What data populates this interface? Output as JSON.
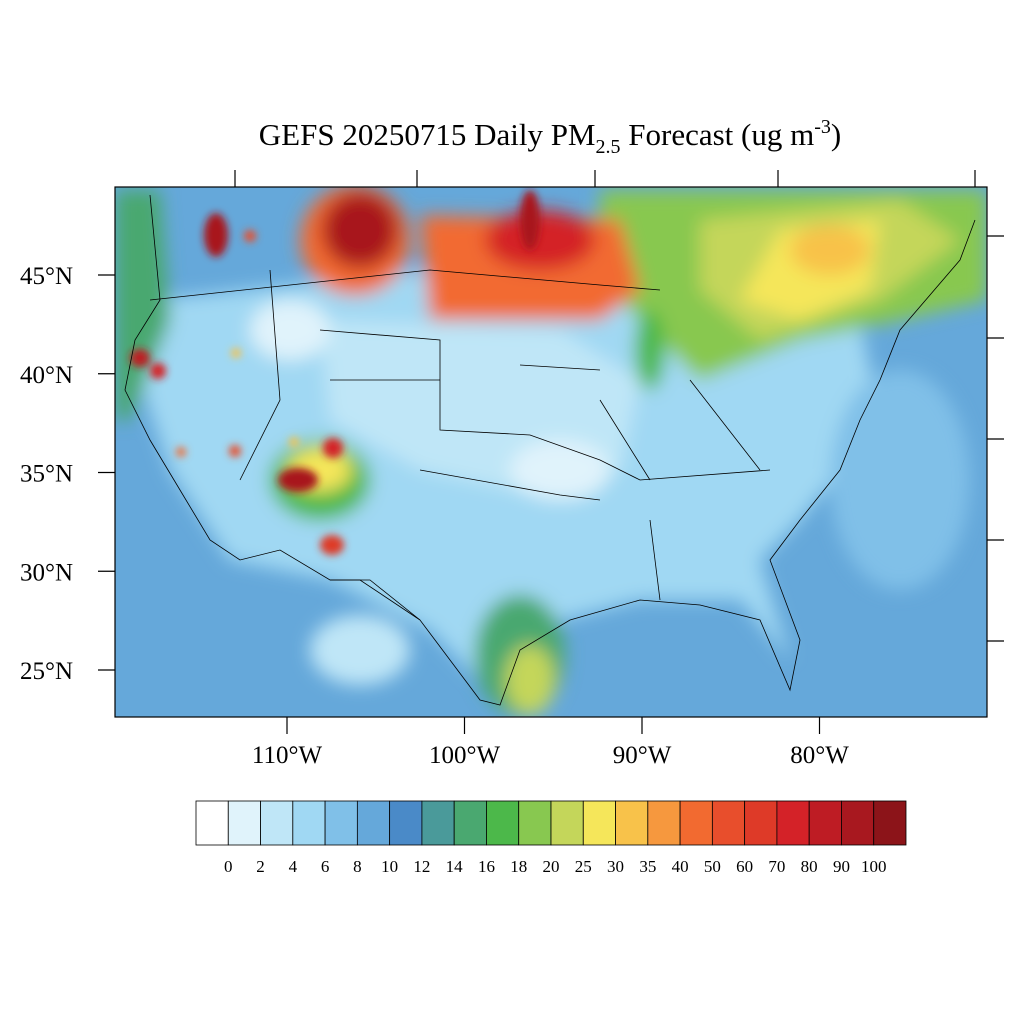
{
  "map": {
    "title": {
      "text1": "GEFS 20250715 Daily PM",
      "subscript": "2.5",
      "text2": " Forecast (ug m",
      "superscript": "-3",
      "text3": ")"
    },
    "lat_ticks": [
      {
        "value": 45,
        "label": "45°N"
      },
      {
        "value": 40,
        "label": "40°N"
      },
      {
        "value": 35,
        "label": "35°N"
      },
      {
        "value": 30,
        "label": "30°N"
      },
      {
        "value": 25,
        "label": "25°N"
      }
    ],
    "lon_ticks": [
      {
        "value": -110,
        "label": "110°W"
      },
      {
        "value": -100,
        "label": "100°W"
      },
      {
        "value": -90,
        "label": "90°W"
      },
      {
        "value": -80,
        "label": "80°W"
      }
    ],
    "colorbar": {
      "levels": [
        0,
        2,
        4,
        6,
        8,
        10,
        12,
        14,
        16,
        18,
        20,
        25,
        30,
        35,
        40,
        50,
        60,
        70,
        80,
        90,
        100
      ],
      "colors": [
        "#ffffff",
        "#e0f3fb",
        "#bfe6f7",
        "#a0d8f3",
        "#80c0e8",
        "#65a8da",
        "#4a8ac8",
        "#4a9a9a",
        "#4aa870",
        "#4cb84a",
        "#88c850",
        "#c4d65a",
        "#f5e65a",
        "#f8c24a",
        "#f6983e",
        "#f26a30",
        "#e84e2c",
        "#de3a28",
        "#d42228",
        "#be1c24",
        "#a8181f",
        "#8c1419"
      ]
    }
  }
}
